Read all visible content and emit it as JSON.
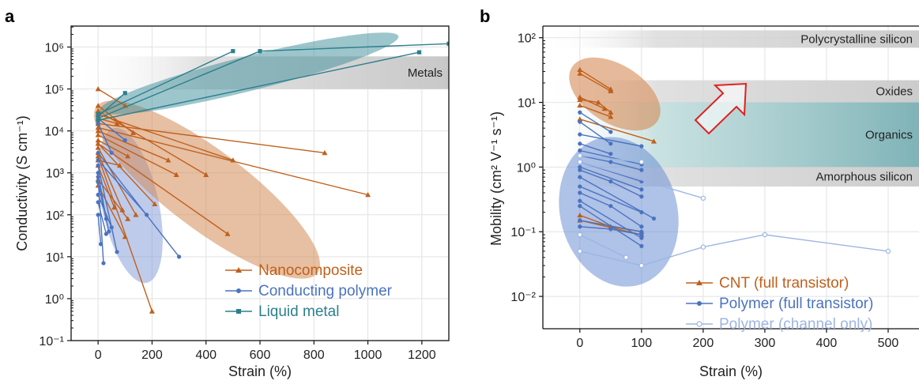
{
  "panels": [
    {
      "letter": "a",
      "xlabel": "Strain (%)",
      "ylabel": "Conductivity (S cm⁻¹)",
      "xticks": [
        "0",
        "200",
        "400",
        "600",
        "800",
        "1000",
        "1200"
      ],
      "yticks": [
        "10⁻¹",
        "10⁰",
        "10¹",
        "10²",
        "10³",
        "10⁴",
        "10⁵",
        "10⁶"
      ],
      "bands": [
        {
          "label": "Metals"
        }
      ],
      "legend": [
        "Nanocomposite",
        "Conducting polymer",
        "Liquid metal"
      ]
    },
    {
      "letter": "b",
      "xlabel": "Strain (%)",
      "ylabel": "Mobility (cm² V⁻¹ s⁻¹)",
      "xticks": [
        "0",
        "100",
        "200",
        "300",
        "400",
        "500"
      ],
      "yticks": [
        "10⁻²",
        "10⁻¹",
        "10⁰",
        "10¹",
        "10²"
      ],
      "bands": [
        {
          "label": "Polycrystalline silicon"
        },
        {
          "label": "Oxides"
        },
        {
          "label": "Organics"
        },
        {
          "label": "Amorphous silicon"
        }
      ],
      "legend": [
        "CNT (full transistor)",
        "Polymer (full transistor)",
        "Polymer (channel only)"
      ]
    }
  ],
  "chart_data": [
    {
      "type": "line",
      "xlabel": "Strain (%)",
      "ylabel": "Conductivity (S cm⁻¹)",
      "xlim": [
        -100,
        1300
      ],
      "ylim": [
        0.1,
        3000000
      ],
      "yscale": "log",
      "grid": true,
      "legend_position": "bottom-right",
      "reference_bands": [
        {
          "label": "Metals",
          "range": [
            100000,
            600000
          ]
        }
      ],
      "series": [
        {
          "name": "Nanocomposite",
          "color": "#c0601c",
          "marker": "triangle",
          "lines": [
            [
              [
                0,
                100000
              ],
              [
                100,
                40000
              ]
            ],
            [
              [
                0,
                40000
              ],
              [
                130,
                9000
              ]
            ],
            [
              [
                0,
                30000
              ],
              [
                400,
                900
              ]
            ],
            [
              [
                0,
                25000
              ],
              [
                500,
                2000
              ]
            ],
            [
              [
                0,
                20000
              ],
              [
                70,
                15000
              ]
            ],
            [
              [
                0,
                15000
              ],
              [
                840,
                3000
              ]
            ],
            [
              [
                0,
                12000
              ],
              [
                1000,
                300
              ]
            ],
            [
              [
                0,
                10000
              ],
              [
                260,
                2000
              ]
            ],
            [
              [
                0,
                8000
              ],
              [
                290,
                900
              ]
            ],
            [
              [
                0,
                6000
              ],
              [
                110,
                2500
              ]
            ],
            [
              [
                0,
                5000
              ],
              [
                480,
                35
              ]
            ],
            [
              [
                0,
                5000
              ],
              [
                210,
                180
              ]
            ],
            [
              [
                0,
                4000
              ],
              [
                140,
                100
              ]
            ],
            [
              [
                0,
                3000
              ],
              [
                90,
                130
              ]
            ],
            [
              [
                0,
                2500
              ],
              [
                200,
                0.5
              ]
            ],
            [
              [
                0,
                2000
              ],
              [
                80,
                1500
              ]
            ],
            [
              [
                0,
                1500
              ],
              [
                60,
                150
              ]
            ],
            [
              [
                0,
                700
              ],
              [
                110,
                80
              ]
            ],
            [
              [
                0,
                500
              ],
              [
                100,
                30
              ]
            ]
          ]
        },
        {
          "name": "Conducting polymer",
          "color": "#4a73c0",
          "marker": "circle",
          "lines": [
            [
              [
                0,
                20000
              ],
              [
                100,
                6000
              ]
            ],
            [
              [
                0,
                15000
              ],
              [
                50,
                3000
              ]
            ],
            [
              [
                0,
                3000
              ],
              [
                300,
                10
              ]
            ],
            [
              [
                0,
                2000
              ],
              [
                180,
                100
              ]
            ],
            [
              [
                0,
                1500
              ],
              [
                70,
                13
              ]
            ],
            [
              [
                0,
                1000
              ],
              [
                30,
                80
              ]
            ],
            [
              [
                0,
                800
              ],
              [
                20,
                7
              ]
            ],
            [
              [
                0,
                600
              ],
              [
                40,
                40
              ]
            ],
            [
              [
                0,
                100
              ],
              [
                10,
                20
              ]
            ],
            [
              [
                0,
                300
              ],
              [
                50,
                50
              ]
            ],
            [
              [
                0,
                200
              ],
              [
                30,
                35
              ]
            ]
          ]
        },
        {
          "name": "Liquid metal",
          "color": "#2d7f8e",
          "marker": "square",
          "lines": [
            [
              [
                0,
                25000
              ],
              [
                500,
                800000
              ]
            ],
            [
              [
                0,
                22000
              ],
              [
                100,
                80000
              ]
            ],
            [
              [
                0,
                20000
              ],
              [
                600,
                800000
              ],
              [
                1300,
                1200000
              ]
            ],
            [
              [
                0,
                18000
              ],
              [
                1190,
                750000
              ]
            ]
          ]
        }
      ]
    },
    {
      "type": "line",
      "xlabel": "Strain (%)",
      "ylabel": "Mobility (cm² V⁻¹ s⁻¹)",
      "xlim": [
        -60,
        550
      ],
      "ylim": [
        0.003,
        150
      ],
      "yscale": "log",
      "grid": true,
      "legend_position": "bottom-right",
      "reference_bands": [
        {
          "label": "Polycrystalline silicon",
          "range": [
            70,
            130
          ]
        },
        {
          "label": "Oxides",
          "range": [
            10,
            22
          ]
        },
        {
          "label": "Organics",
          "range": [
            1,
            10
          ]
        },
        {
          "label": "Amorphous silicon",
          "range": [
            0.5,
            1
          ]
        }
      ],
      "series": [
        {
          "name": "CNT (full transistor)",
          "color": "#c0601c",
          "marker": "triangle",
          "lines": [
            [
              [
                0,
                32
              ],
              [
                50,
                16
              ]
            ],
            [
              [
                0,
                28
              ],
              [
                50,
                15
              ]
            ],
            [
              [
                0,
                12
              ],
              [
                40,
                8
              ]
            ],
            [
              [
                0,
                11
              ],
              [
                30,
                10
              ],
              [
                50,
                7
              ]
            ],
            [
              [
                0,
                9
              ],
              [
                50,
                6
              ]
            ],
            [
              [
                0,
                5.5
              ],
              [
                120,
                2.5
              ]
            ],
            [
              [
                0,
                0.18
              ],
              [
                50,
                0.12
              ],
              [
                100,
                0.1
              ]
            ],
            [
              [
                0,
                0.15
              ],
              [
                100,
                0.09
              ]
            ]
          ]
        },
        {
          "name": "Polymer (full transistor)",
          "color": "#4a73c0",
          "marker": "circle",
          "lines": [
            [
              [
                0,
                7
              ],
              [
                50,
                3.5
              ]
            ],
            [
              [
                0,
                5
              ],
              [
                50,
                2.3
              ]
            ],
            [
              [
                0,
                3.2
              ],
              [
                100,
                2.1
              ]
            ],
            [
              [
                0,
                2.3
              ],
              [
                50,
                1.6
              ]
            ],
            [
              [
                0,
                1.8
              ],
              [
                100,
                1.1
              ]
            ],
            [
              [
                0,
                1.5
              ],
              [
                50,
                1.2
              ],
              [
                100,
                0.9
              ]
            ],
            [
              [
                0,
                1.2
              ],
              [
                100,
                0.6
              ]
            ],
            [
              [
                0,
                1.0
              ],
              [
                100,
                0.45
              ]
            ],
            [
              [
                0,
                0.9
              ],
              [
                50,
                0.6
              ],
              [
                100,
                0.35
              ]
            ],
            [
              [
                0,
                0.7
              ],
              [
                120,
                0.16
              ]
            ],
            [
              [
                0,
                0.5
              ],
              [
                100,
                0.2
              ]
            ],
            [
              [
                0,
                0.4
              ],
              [
                50,
                0.25
              ],
              [
                100,
                0.12
              ]
            ],
            [
              [
                0,
                0.3
              ],
              [
                100,
                0.08
              ]
            ],
            [
              [
                0,
                0.25
              ],
              [
                100,
                0.06
              ]
            ],
            [
              [
                0,
                0.15
              ],
              [
                100,
                0.1
              ]
            ],
            [
              [
                0,
                0.12
              ],
              [
                50,
                0.11
              ],
              [
                100,
                0.09
              ]
            ]
          ]
        },
        {
          "name": "Polymer (channel only)",
          "color": "#9db5e3",
          "marker": "open-circle",
          "lines": [
            [
              [
                0,
                1.5
              ],
              [
                100,
                1.2
              ]
            ],
            [
              [
                0,
                1.2
              ],
              [
                200,
                0.33
              ]
            ],
            [
              [
                0,
                0.09
              ],
              [
                75,
                0.04
              ]
            ],
            [
              [
                0,
                0.05
              ],
              [
                100,
                0.03
              ],
              [
                200,
                0.058
              ],
              [
                300,
                0.09
              ],
              [
                500,
                0.05
              ]
            ]
          ]
        }
      ]
    }
  ]
}
